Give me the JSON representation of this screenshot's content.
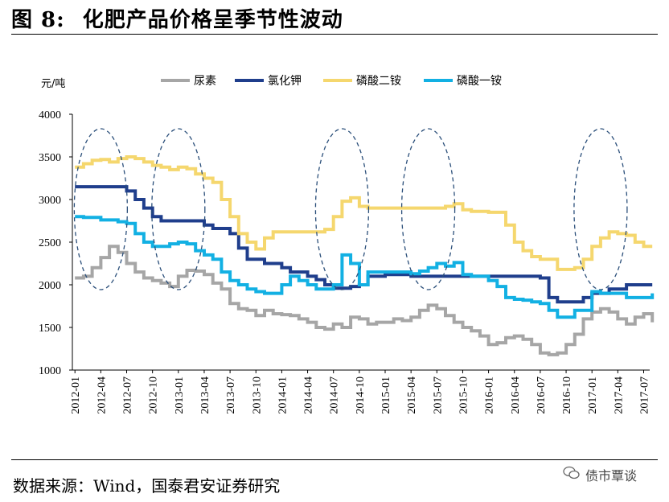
{
  "header": {
    "figure_label": "图 8:",
    "title_text": "化肥产品价格呈季节性波动"
  },
  "footer": {
    "source": "数据来源：Wind，国泰君安证券研究",
    "watermark": "债市覃谈",
    "watermark_icon": "wechat-icon"
  },
  "chart_data": {
    "type": "line",
    "title": "化肥产品价格呈季节性波动",
    "unit_label": "元/吨",
    "xlabel": "",
    "ylabel": "元/吨",
    "ylim": [
      1000,
      4000
    ],
    "yticks": [
      1000,
      1500,
      2000,
      2500,
      3000,
      3500,
      4000
    ],
    "xlim": [
      "2012-01",
      "2017-07"
    ],
    "xticks": [
      "2012-01",
      "2012-04",
      "2012-07",
      "2012-10",
      "2013-01",
      "2013-04",
      "2013-07",
      "2013-10",
      "2014-01",
      "2014-04",
      "2014-07",
      "2014-10",
      "2015-01",
      "2015-04",
      "2015-07",
      "2015-10",
      "2016-01",
      "2016-04",
      "2016-07",
      "2016-10",
      "2017-01",
      "2017-04",
      "2017-07"
    ],
    "grid": false,
    "legend_position": "top",
    "annotations": "dashed ellipses mark seasonal peaks",
    "series": [
      {
        "name": "尿素",
        "color": "#a6a6a6",
        "points": [
          [
            "2012-01",
            2080
          ],
          [
            "2012-02",
            2100
          ],
          [
            "2012-03",
            2200
          ],
          [
            "2012-04",
            2320
          ],
          [
            "2012-05",
            2450
          ],
          [
            "2012-06",
            2380
          ],
          [
            "2012-07",
            2250
          ],
          [
            "2012-08",
            2150
          ],
          [
            "2012-09",
            2080
          ],
          [
            "2012-10",
            2050
          ],
          [
            "2012-11",
            2020
          ],
          [
            "2012-12",
            1980
          ],
          [
            "2013-01",
            2100
          ],
          [
            "2013-02",
            2170
          ],
          [
            "2013-03",
            2160
          ],
          [
            "2013-04",
            2120
          ],
          [
            "2013-05",
            2020
          ],
          [
            "2013-06",
            1950
          ],
          [
            "2013-07",
            1780
          ],
          [
            "2013-08",
            1720
          ],
          [
            "2013-09",
            1700
          ],
          [
            "2013-10",
            1640
          ],
          [
            "2013-11",
            1700
          ],
          [
            "2013-12",
            1660
          ],
          [
            "2014-01",
            1650
          ],
          [
            "2014-02",
            1640
          ],
          [
            "2014-03",
            1600
          ],
          [
            "2014-04",
            1560
          ],
          [
            "2014-05",
            1500
          ],
          [
            "2014-06",
            1480
          ],
          [
            "2014-07",
            1540
          ],
          [
            "2014-08",
            1500
          ],
          [
            "2014-09",
            1620
          ],
          [
            "2014-10",
            1600
          ],
          [
            "2014-11",
            1540
          ],
          [
            "2014-12",
            1560
          ],
          [
            "2015-01",
            1560
          ],
          [
            "2015-02",
            1600
          ],
          [
            "2015-03",
            1580
          ],
          [
            "2015-04",
            1620
          ],
          [
            "2015-05",
            1700
          ],
          [
            "2015-06",
            1760
          ],
          [
            "2015-07",
            1720
          ],
          [
            "2015-08",
            1640
          ],
          [
            "2015-09",
            1560
          ],
          [
            "2015-10",
            1500
          ],
          [
            "2015-11",
            1460
          ],
          [
            "2015-12",
            1400
          ],
          [
            "2016-01",
            1300
          ],
          [
            "2016-02",
            1320
          ],
          [
            "2016-03",
            1380
          ],
          [
            "2016-04",
            1400
          ],
          [
            "2016-05",
            1360
          ],
          [
            "2016-06",
            1300
          ],
          [
            "2016-07",
            1200
          ],
          [
            "2016-08",
            1180
          ],
          [
            "2016-09",
            1200
          ],
          [
            "2016-10",
            1300
          ],
          [
            "2016-11",
            1420
          ],
          [
            "2016-12",
            1600
          ],
          [
            "2017-01",
            1680
          ],
          [
            "2017-02",
            1720
          ],
          [
            "2017-03",
            1680
          ],
          [
            "2017-04",
            1600
          ],
          [
            "2017-05",
            1540
          ],
          [
            "2017-06",
            1620
          ],
          [
            "2017-07",
            1660
          ],
          [
            "2017-08",
            1560
          ]
        ]
      },
      {
        "name": "氯化钾",
        "color": "#1f3e8c",
        "points": [
          [
            "2012-01",
            3150
          ],
          [
            "2012-03",
            3150
          ],
          [
            "2012-05",
            3150
          ],
          [
            "2012-07",
            3100
          ],
          [
            "2012-08",
            3000
          ],
          [
            "2012-09",
            2900
          ],
          [
            "2012-10",
            2800
          ],
          [
            "2012-11",
            2750
          ],
          [
            "2013-01",
            2750
          ],
          [
            "2013-04",
            2700
          ],
          [
            "2013-05",
            2660
          ],
          [
            "2013-07",
            2600
          ],
          [
            "2013-08",
            2430
          ],
          [
            "2013-09",
            2300
          ],
          [
            "2013-11",
            2250
          ],
          [
            "2014-01",
            2200
          ],
          [
            "2014-02",
            2150
          ],
          [
            "2014-04",
            2100
          ],
          [
            "2014-05",
            2060
          ],
          [
            "2014-06",
            2000
          ],
          [
            "2014-07",
            1960
          ],
          [
            "2014-09",
            1980
          ],
          [
            "2014-10",
            2000
          ],
          [
            "2014-11",
            2100
          ],
          [
            "2015-01",
            2120
          ],
          [
            "2015-04",
            2100
          ],
          [
            "2015-07",
            2100
          ],
          [
            "2015-10",
            2100
          ],
          [
            "2016-01",
            2100
          ],
          [
            "2016-04",
            2100
          ],
          [
            "2016-07",
            2080
          ],
          [
            "2016-08",
            1850
          ],
          [
            "2016-09",
            1800
          ],
          [
            "2016-10",
            1800
          ],
          [
            "2016-12",
            1850
          ],
          [
            "2017-01",
            1900
          ],
          [
            "2017-03",
            1950
          ],
          [
            "2017-05",
            2000
          ],
          [
            "2017-08",
            2000
          ]
        ]
      },
      {
        "name": "磷酸二铵",
        "color": "#f5d76e",
        "points": [
          [
            "2012-01",
            3380
          ],
          [
            "2012-02",
            3420
          ],
          [
            "2012-03",
            3460
          ],
          [
            "2012-04",
            3470
          ],
          [
            "2012-05",
            3440
          ],
          [
            "2012-06",
            3480
          ],
          [
            "2012-07",
            3500
          ],
          [
            "2012-08",
            3480
          ],
          [
            "2012-09",
            3440
          ],
          [
            "2012-10",
            3400
          ],
          [
            "2012-11",
            3380
          ],
          [
            "2012-12",
            3350
          ],
          [
            "2013-01",
            3380
          ],
          [
            "2013-02",
            3360
          ],
          [
            "2013-03",
            3300
          ],
          [
            "2013-04",
            3250
          ],
          [
            "2013-05",
            3200
          ],
          [
            "2013-06",
            3000
          ],
          [
            "2013-07",
            2800
          ],
          [
            "2013-08",
            2600
          ],
          [
            "2013-09",
            2500
          ],
          [
            "2013-10",
            2420
          ],
          [
            "2013-11",
            2550
          ],
          [
            "2013-12",
            2620
          ],
          [
            "2014-02",
            2620
          ],
          [
            "2014-04",
            2620
          ],
          [
            "2014-06",
            2650
          ],
          [
            "2014-07",
            2800
          ],
          [
            "2014-08",
            2980
          ],
          [
            "2014-09",
            3020
          ],
          [
            "2014-10",
            2920
          ],
          [
            "2014-11",
            2900
          ],
          [
            "2015-01",
            2900
          ],
          [
            "2015-04",
            2900
          ],
          [
            "2015-07",
            2900
          ],
          [
            "2015-08",
            2920
          ],
          [
            "2015-09",
            2950
          ],
          [
            "2015-10",
            2880
          ],
          [
            "2015-11",
            2860
          ],
          [
            "2016-01",
            2850
          ],
          [
            "2016-02",
            2850
          ],
          [
            "2016-03",
            2700
          ],
          [
            "2016-04",
            2500
          ],
          [
            "2016-05",
            2400
          ],
          [
            "2016-06",
            2330
          ],
          [
            "2016-07",
            2300
          ],
          [
            "2016-08",
            2300
          ],
          [
            "2016-09",
            2180
          ],
          [
            "2016-10",
            2180
          ],
          [
            "2016-11",
            2200
          ],
          [
            "2016-12",
            2300
          ],
          [
            "2017-01",
            2450
          ],
          [
            "2017-02",
            2550
          ],
          [
            "2017-03",
            2620
          ],
          [
            "2017-04",
            2600
          ],
          [
            "2017-05",
            2580
          ],
          [
            "2017-06",
            2500
          ],
          [
            "2017-07",
            2450
          ],
          [
            "2017-08",
            2450
          ]
        ]
      },
      {
        "name": "磷酸一铵",
        "color": "#12b0e3",
        "points": [
          [
            "2012-01",
            2800
          ],
          [
            "2012-02",
            2790
          ],
          [
            "2012-04",
            2760
          ],
          [
            "2012-05",
            2760
          ],
          [
            "2012-06",
            2740
          ],
          [
            "2012-07",
            2720
          ],
          [
            "2012-08",
            2600
          ],
          [
            "2012-09",
            2500
          ],
          [
            "2012-10",
            2450
          ],
          [
            "2012-11",
            2450
          ],
          [
            "2012-12",
            2480
          ],
          [
            "2013-01",
            2500
          ],
          [
            "2013-02",
            2480
          ],
          [
            "2013-03",
            2400
          ],
          [
            "2013-04",
            2350
          ],
          [
            "2013-05",
            2300
          ],
          [
            "2013-06",
            2150
          ],
          [
            "2013-07",
            2050
          ],
          [
            "2013-08",
            2000
          ],
          [
            "2013-09",
            1950
          ],
          [
            "2013-10",
            1920
          ],
          [
            "2013-11",
            1900
          ],
          [
            "2013-12",
            1900
          ],
          [
            "2014-01",
            2000
          ],
          [
            "2014-02",
            2100
          ],
          [
            "2014-03",
            2050
          ],
          [
            "2014-04",
            2000
          ],
          [
            "2014-05",
            1950
          ],
          [
            "2014-06",
            1950
          ],
          [
            "2014-07",
            2000
          ],
          [
            "2014-08",
            2350
          ],
          [
            "2014-09",
            2250
          ],
          [
            "2014-10",
            2000
          ],
          [
            "2014-11",
            2150
          ],
          [
            "2015-01",
            2150
          ],
          [
            "2015-03",
            2150
          ],
          [
            "2015-04",
            2130
          ],
          [
            "2015-05",
            2160
          ],
          [
            "2015-06",
            2200
          ],
          [
            "2015-07",
            2250
          ],
          [
            "2015-08",
            2220
          ],
          [
            "2015-09",
            2260
          ],
          [
            "2015-10",
            2120
          ],
          [
            "2015-11",
            2100
          ],
          [
            "2016-01",
            2050
          ],
          [
            "2016-02",
            1980
          ],
          [
            "2016-03",
            1850
          ],
          [
            "2016-04",
            1830
          ],
          [
            "2016-05",
            1820
          ],
          [
            "2016-06",
            1800
          ],
          [
            "2016-07",
            1780
          ],
          [
            "2016-08",
            1700
          ],
          [
            "2016-09",
            1620
          ],
          [
            "2016-10",
            1620
          ],
          [
            "2016-11",
            1700
          ],
          [
            "2016-12",
            1700
          ],
          [
            "2017-01",
            1920
          ],
          [
            "2017-02",
            1900
          ],
          [
            "2017-03",
            1900
          ],
          [
            "2017-04",
            1900
          ],
          [
            "2017-05",
            1850
          ],
          [
            "2017-06",
            1850
          ],
          [
            "2017-07",
            1850
          ],
          [
            "2017-08",
            1900
          ]
        ]
      }
    ],
    "highlight_months": [
      "2012-04",
      "2013-01",
      "2014-08",
      "2015-06",
      "2017-02"
    ]
  }
}
